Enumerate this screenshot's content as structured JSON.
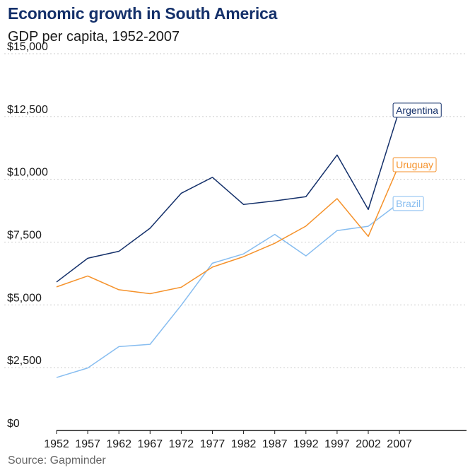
{
  "title": "Economic growth in South America",
  "subtitle": "GDP per capita, 1952-2007",
  "source": "Source: Gapminder",
  "colors": {
    "title": "#14306a",
    "argentina": "#14306a",
    "uruguay": "#f5922b",
    "brazil": "#87bdf0",
    "grid": "#cccccc",
    "axis": "#1a1a1a"
  },
  "chart_data": {
    "type": "line",
    "title": "Economic growth in South America",
    "subtitle": "GDP per capita, 1952-2007",
    "xlabel": "",
    "ylabel": "",
    "x": [
      1952,
      1957,
      1962,
      1967,
      1972,
      1977,
      1982,
      1987,
      1992,
      1997,
      2002,
      2007
    ],
    "x_tick_labels": [
      "1952",
      "1957",
      "1962",
      "1967",
      "1972",
      "1977",
      "1982",
      "1987",
      "1992",
      "1997",
      "2002",
      "2007"
    ],
    "ylim": [
      0,
      15000
    ],
    "y_ticks": [
      0,
      2500,
      5000,
      7500,
      10000,
      12500,
      15000
    ],
    "y_tick_labels": [
      "$0",
      "$2,500",
      "$5,000",
      "$7,500",
      "$10,000",
      "$12,500",
      "$15,000"
    ],
    "grid": "horizontal dotted",
    "legend": "direct labels at line ends",
    "series": [
      {
        "name": "Argentina",
        "color": "#14306a",
        "values": [
          5911,
          6857,
          7133,
          8053,
          9443,
          10079,
          8998,
          9140,
          9308,
          10967,
          8798,
          12779
        ]
      },
      {
        "name": "Uruguay",
        "color": "#f5922b",
        "values": [
          5717,
          6150,
          5603,
          5445,
          5703,
          6504,
          6920,
          7452,
          8137,
          9231,
          7727,
          10611
        ]
      },
      {
        "name": "Brazil",
        "color": "#87bdf0",
        "values": [
          2109,
          2487,
          3337,
          3430,
          4986,
          6660,
          7031,
          7807,
          6950,
          7958,
          8131,
          9066
        ]
      }
    ]
  }
}
